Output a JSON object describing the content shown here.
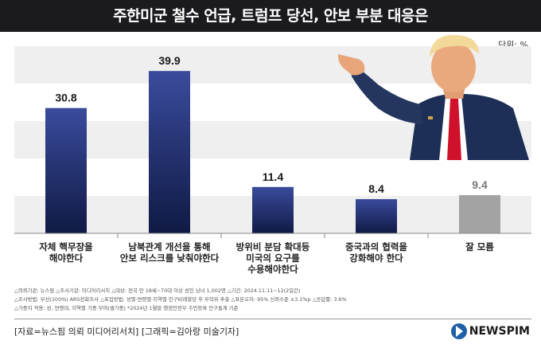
{
  "header": {
    "title": "주한미군 철수 언급, 트럼프 당선, 안보 부분 대응은",
    "unit": "단위: %"
  },
  "chart_data": {
    "type": "bar",
    "categories": [
      "자체 핵무장을\n해야한다",
      "남북관계 개선을 통해\n안보 리스크를 낮춰야한다",
      "방위비 분담 확대등\n미국의 요구를\n수용해야한다",
      "중국과의 협력을\n강화해야 한다",
      "잘 모름"
    ],
    "values": [
      30.8,
      39.9,
      11.4,
      8.4,
      9.4
    ],
    "value_labels": [
      "30.8",
      "39.9",
      "11.4",
      "8.4",
      "9.4"
    ],
    "ylim": [
      0,
      46
    ],
    "grid": "alternating-bands",
    "colors": {
      "bar_top": "#3a4b9c",
      "bar_bottom": "#101a45",
      "dont_know": "#a3a3a3",
      "band": "#efefef"
    }
  },
  "notes": [
    "△의뢰기관: 뉴스핌  △조사기관: 미디어리서치  △대상: 전국 만 18세~70대 이상 성인 남녀 1,002명  △기간: 2024.11.11~12(2일간)",
    "△조사방법: 무선(100%) ARS전화조사  △표집방법: 성별·연령별·지역별 인구비례할당 후 무작위 추출  △표본오차: 95% 신뢰수준 ±3.1%p  △응답률: 3.6%",
    "△가중치 적용: 성, 연령대, 지역별 가중 부여(셀가중) *2024년 1월말 행정안전부 주민등록 인구통계 기준"
  ],
  "footer": {
    "source": "[자료=뉴스핌 의뢰 미디어리서치] [그래픽=김아랑 미술기자]",
    "logo_text": "NEWSPIM"
  },
  "image": {
    "icon": "pointing-man-photo"
  }
}
